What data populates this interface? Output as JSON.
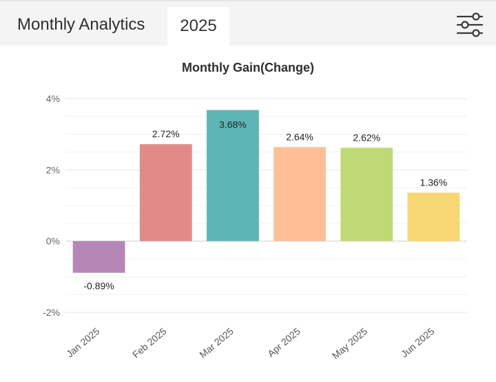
{
  "header": {
    "title": "Monthly Analytics",
    "tab_label": "2025",
    "filter_icon": "sliders-icon"
  },
  "chart_data": {
    "type": "bar",
    "title": "Monthly Gain(Change)",
    "xlabel": "",
    "ylabel": "",
    "categories": [
      "Jan 2025",
      "Feb 2025",
      "Mar 2025",
      "Apr 2025",
      "May 2025",
      "Jun 2025"
    ],
    "values": [
      -0.89,
      2.72,
      3.68,
      2.64,
      2.62,
      1.36
    ],
    "value_labels": [
      "-0.89%",
      "2.72%",
      "3.68%",
      "2.64%",
      "2.62%",
      "1.36%"
    ],
    "colors": [
      "#b587b8",
      "#e18a87",
      "#5db6b5",
      "#ffbf96",
      "#bfd975",
      "#f7d674"
    ],
    "ylim": [
      -2,
      4
    ],
    "yticks": [
      -2,
      0,
      2,
      4
    ],
    "ytick_labels": [
      "-2%",
      "0%",
      "2%",
      "4%"
    ],
    "grid": true
  }
}
